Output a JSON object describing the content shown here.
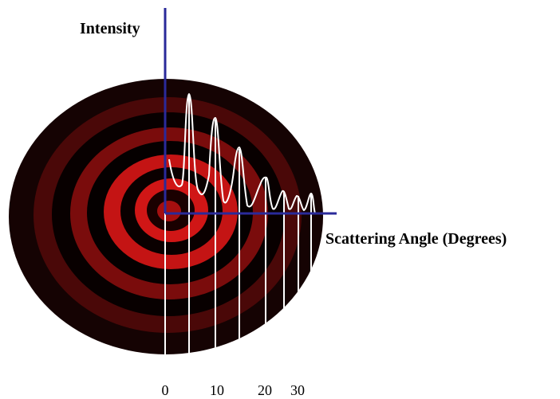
{
  "y_axis": {
    "label": "Intensity"
  },
  "x_axis": {
    "label": "Scattering Angle (Degrees)",
    "ticks": [
      "0",
      "10",
      "20",
      "30"
    ]
  }
}
